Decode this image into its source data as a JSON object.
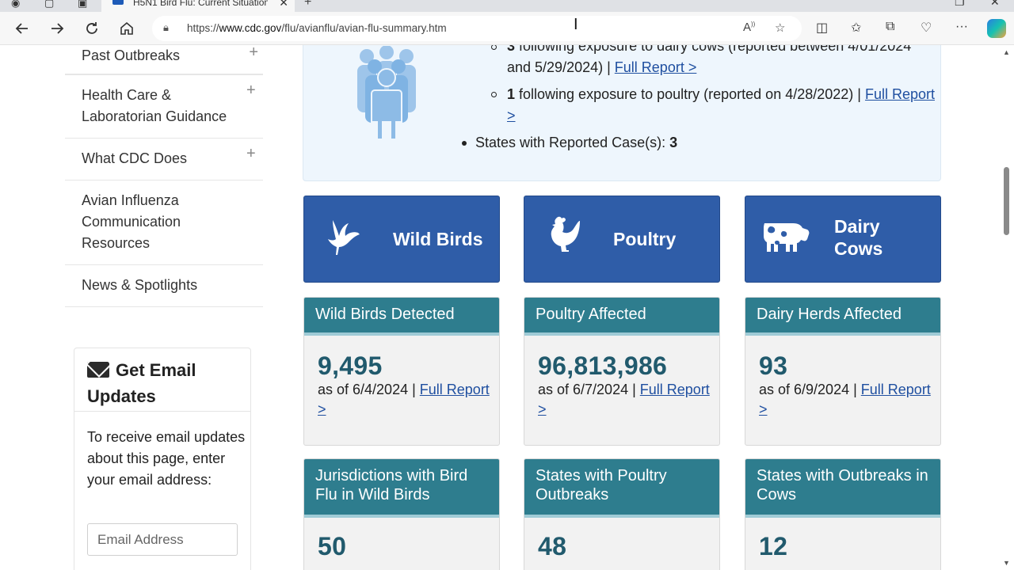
{
  "browser": {
    "tab_title": "H5N1 Bird Flu: Current Situation",
    "url_prefix": "https://",
    "url_host": "www.cdc.gov",
    "url_path": "/flu/avianflu/avian-flu-summary.htm"
  },
  "sidebar": {
    "items": [
      {
        "label": "Past Outbreaks",
        "expand": "+"
      },
      {
        "label": "Health Care & Laboratorian Guidance",
        "expand": "+"
      },
      {
        "label": "What CDC Does",
        "expand": "+"
      },
      {
        "label": "Avian Influenza Communication Resources",
        "expand": ""
      },
      {
        "label": "News & Spotlights",
        "expand": ""
      }
    ]
  },
  "email": {
    "title": "Get Email Updates",
    "text": "To receive email updates about this page, enter your email address:",
    "placeholder": "Email Address"
  },
  "cases": {
    "sub1_num": "3",
    "sub1_text": " following exposure to dairy cows (reported between 4/01/2024 and 5/29/2024) | ",
    "sub1_link": "Full Report >",
    "sub2_num": "1",
    "sub2_text": " following exposure to poultry (reported on 4/28/2022) | ",
    "sub2_link": "Full Report >",
    "states_label": "States with Reported Case(s): ",
    "states_value": "3"
  },
  "categories": [
    {
      "label": "Wild Birds",
      "icon": "bird-icon"
    },
    {
      "label": "Poultry",
      "icon": "chicken-icon"
    },
    {
      "label": "Dairy Cows",
      "icon": "cow-icon"
    }
  ],
  "stats_row1": [
    {
      "header": "Wild Birds Detected",
      "value": "9,495",
      "asof": "as of 6/4/2024 | ",
      "link": "Full Report >"
    },
    {
      "header": "Poultry Affected",
      "value": "96,813,986",
      "asof": "as of 6/7/2024 | ",
      "link": "Full Report >"
    },
    {
      "header": "Dairy Herds Affected",
      "value": "93",
      "asof": "as of 6/9/2024 | ",
      "link": "Full Report >"
    }
  ],
  "stats_row2": [
    {
      "header": "Jurisdictions with Bird Flu in Wild Birds",
      "value": "50"
    },
    {
      "header": "States with Poultry Outbreaks",
      "value": "48"
    },
    {
      "header": "States with Outbreaks in Cows",
      "value": "12"
    }
  ],
  "colors": {
    "category_blue": "#2f5da8",
    "stat_teal": "#2e7d8e",
    "stat_number": "#215a6d",
    "link": "#1f4fa0",
    "cases_bg": "#eef6fd"
  }
}
